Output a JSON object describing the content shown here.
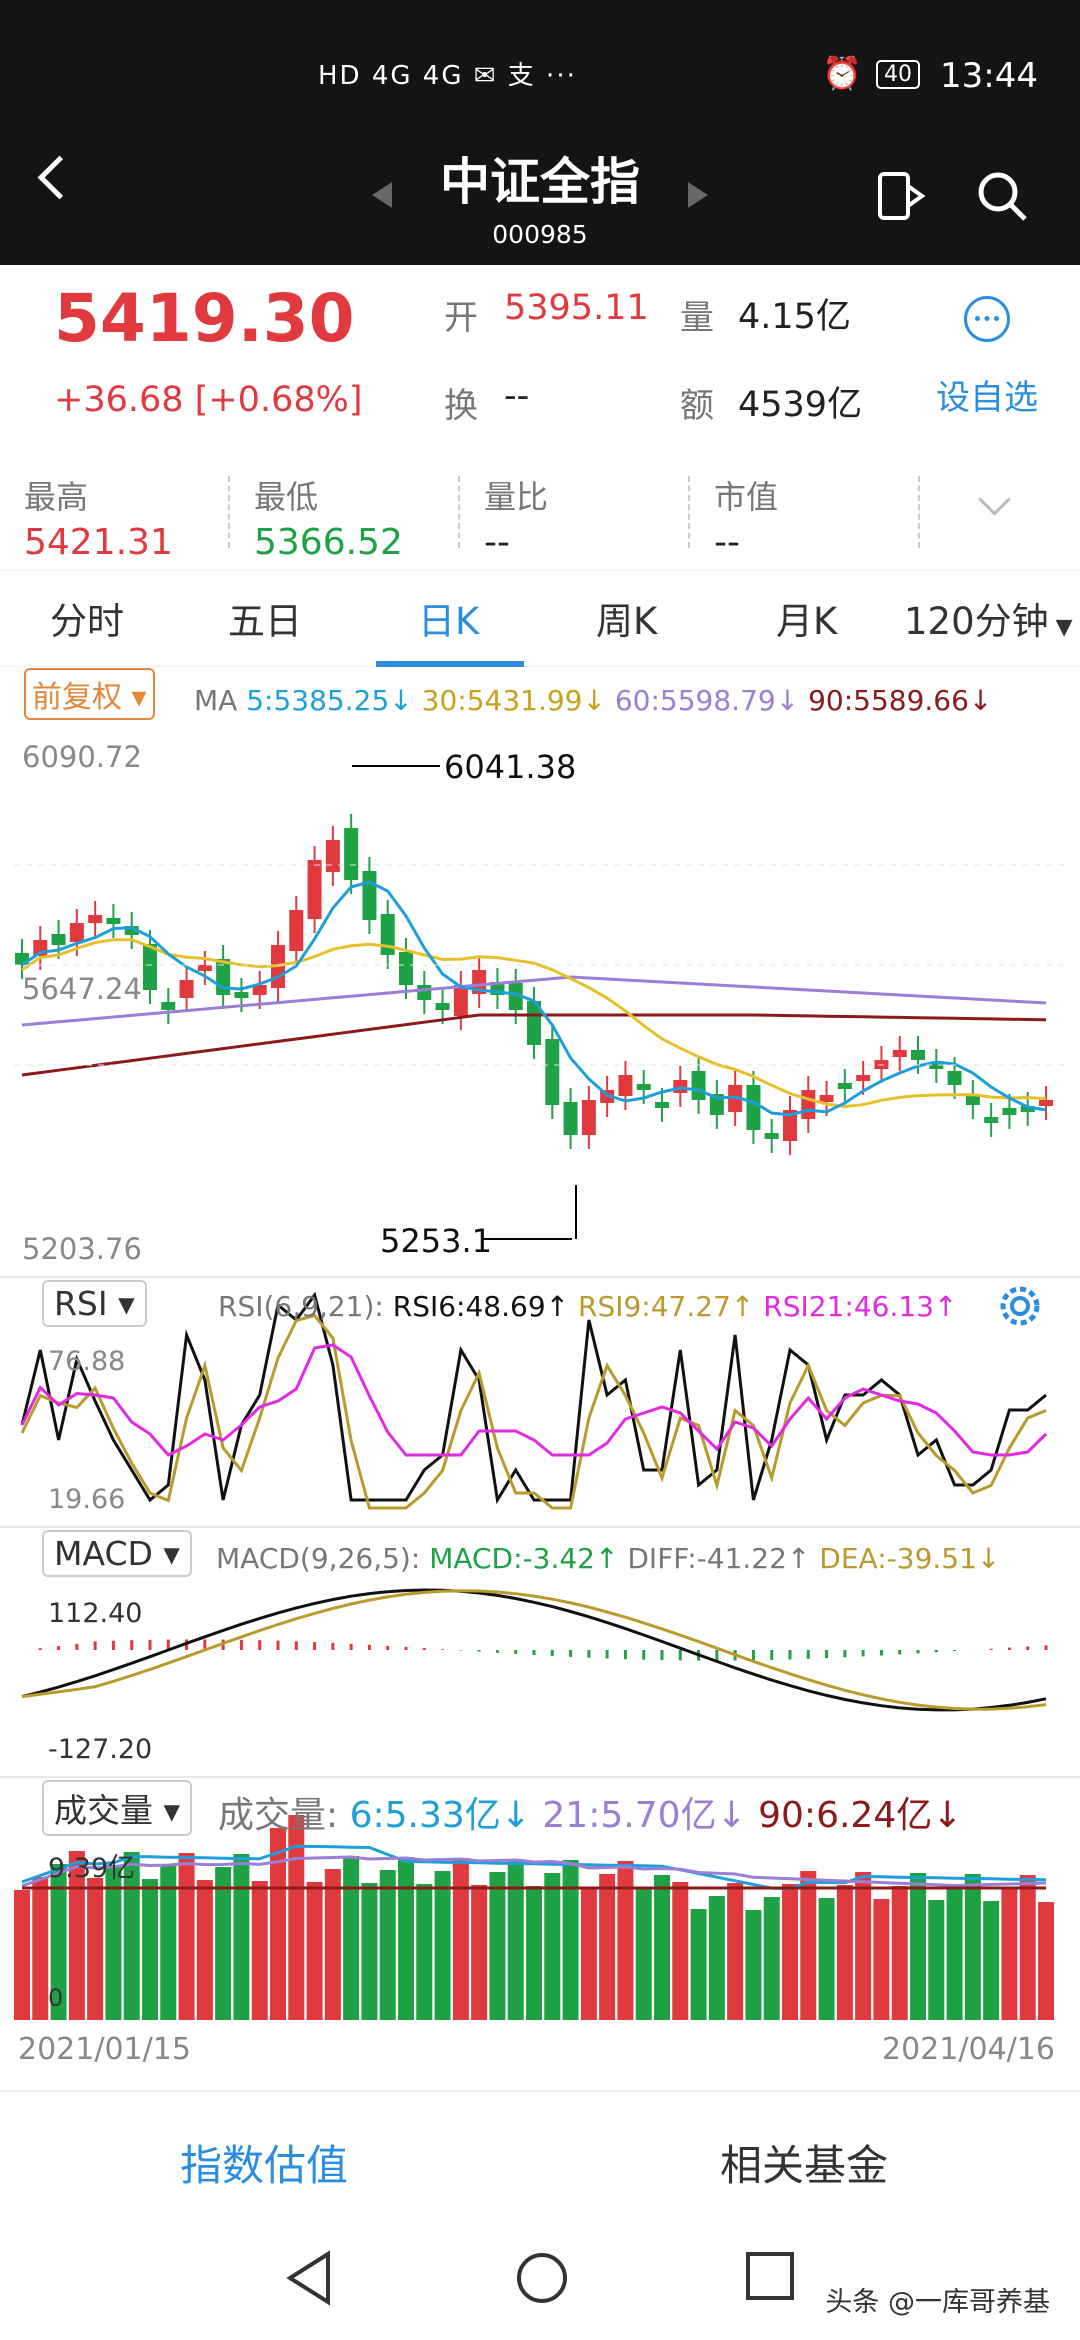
{
  "status": {
    "time": "13:44",
    "battery": "40",
    "left_icons": "HD 4G 4G ✉ 支 ··· "
  },
  "header": {
    "title": "中证全指",
    "code": "000985"
  },
  "quote": {
    "price": "5419.30",
    "change": "+36.68",
    "change_pct": "[+0.68%]",
    "open_label": "开",
    "open": "5395.11",
    "volume_label": "量",
    "volume": "4.15亿",
    "turnover_label": "换",
    "turnover": "--",
    "amount_label": "额",
    "amount": "4539亿",
    "fav_label": "设自选"
  },
  "stats": [
    {
      "label": "最高",
      "value": "5421.31"
    },
    {
      "label": "最低",
      "value": "5366.52"
    },
    {
      "label": "量比",
      "value": "--"
    },
    {
      "label": "市值",
      "value": "--"
    }
  ],
  "tabs": [
    "分时",
    "五日",
    "日K",
    "周K",
    "月K",
    "120分钟"
  ],
  "active_tab": "日K",
  "kline": {
    "adjust": "前复权",
    "ma_label": "MA",
    "ma5": "5:5385.25↓",
    "ma30": "30:5431.99↓",
    "ma60": "60:5598.79↓",
    "ma90": "90:5589.66↓",
    "y_top": "6090.72",
    "y_mid": "5647.24",
    "y_bottom": "5203.76",
    "high_mark": "6041.38",
    "low_mark": "5253.1"
  },
  "rsi": {
    "selector": "RSI",
    "params": "RSI(6,9,21):",
    "rsi6": "RSI6:48.69↑",
    "rsi9": "RSI9:47.27↑",
    "rsi21": "RSI21:46.13↑",
    "y_top": "76.88",
    "y_bottom": "19.66"
  },
  "macd": {
    "selector": "MACD",
    "params": "MACD(9,26,5):",
    "macd": "MACD:-3.42↑",
    "diff": "DIFF:-41.22↑",
    "dea": "DEA:-39.51↓",
    "y_top": "112.40",
    "y_bottom": "-127.20"
  },
  "volume": {
    "selector": "成交量",
    "label": "成交量:",
    "v6": "6:5.33亿↓",
    "v21": "21:5.70亿↓",
    "v90": "90:6.24亿↓",
    "y_top": "9.39亿",
    "y_zero": "0"
  },
  "dates": {
    "start": "2021/01/15",
    "end": "2021/04/16"
  },
  "bottom": {
    "left": "指数估值",
    "right": "相关基金"
  },
  "watermark": "头条 @一库哥养基",
  "colors": {
    "up": "#e0393e",
    "down": "#1fa245",
    "accent": "#2b8de0",
    "ma5": "#1e9fd8",
    "ma30": "#e6c02a",
    "ma60": "#9a7fd6",
    "ma90": "#8b1a1a"
  }
}
